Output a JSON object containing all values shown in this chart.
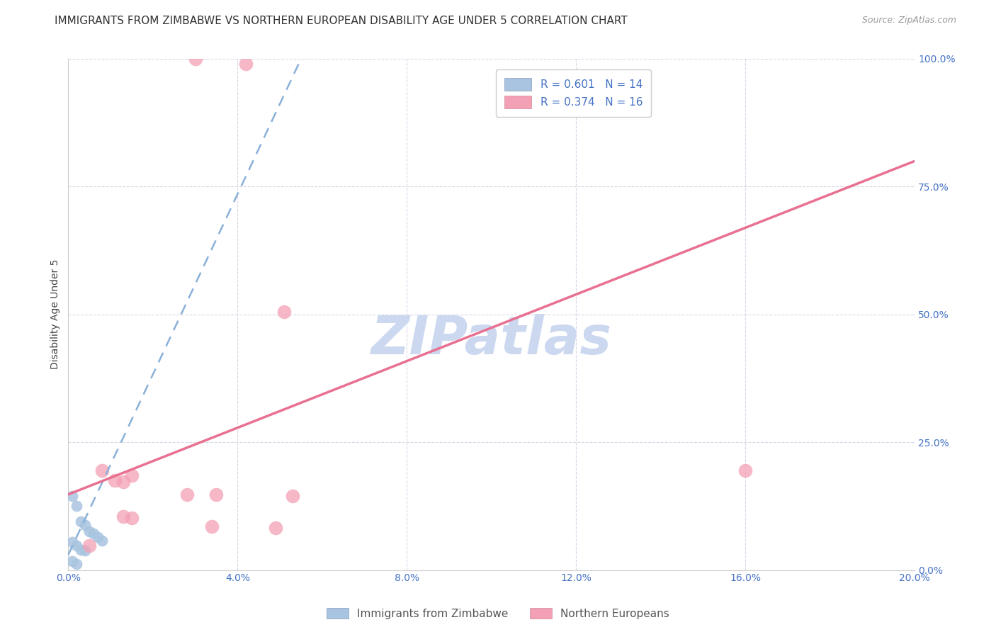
{
  "title": "IMMIGRANTS FROM ZIMBABWE VS NORTHERN EUROPEAN DISABILITY AGE UNDER 5 CORRELATION CHART",
  "source": "Source: ZipAtlas.com",
  "ylabel": "Disability Age Under 5",
  "xlim": [
    0.0,
    0.2
  ],
  "ylim": [
    0.0,
    1.0
  ],
  "xticks": [
    0.0,
    0.04,
    0.08,
    0.12,
    0.16,
    0.2
  ],
  "yticks": [
    0.0,
    0.25,
    0.5,
    0.75,
    1.0
  ],
  "xtick_labels": [
    "0.0%",
    "4.0%",
    "8.0%",
    "12.0%",
    "16.0%",
    "20.0%"
  ],
  "ytick_labels": [
    "0.0%",
    "25.0%",
    "50.0%",
    "75.0%",
    "100.0%"
  ],
  "zimbabwe_dots": [
    [
      0.001,
      0.145
    ],
    [
      0.002,
      0.125
    ],
    [
      0.003,
      0.095
    ],
    [
      0.004,
      0.088
    ],
    [
      0.005,
      0.075
    ],
    [
      0.006,
      0.072
    ],
    [
      0.007,
      0.065
    ],
    [
      0.008,
      0.058
    ],
    [
      0.001,
      0.055
    ],
    [
      0.002,
      0.048
    ],
    [
      0.003,
      0.04
    ],
    [
      0.004,
      0.038
    ],
    [
      0.001,
      0.018
    ],
    [
      0.002,
      0.012
    ]
  ],
  "northern_dots": [
    [
      0.03,
      1.0
    ],
    [
      0.042,
      0.99
    ],
    [
      0.008,
      0.195
    ],
    [
      0.011,
      0.175
    ],
    [
      0.013,
      0.172
    ],
    [
      0.015,
      0.185
    ],
    [
      0.028,
      0.148
    ],
    [
      0.035,
      0.148
    ],
    [
      0.053,
      0.145
    ],
    [
      0.013,
      0.105
    ],
    [
      0.015,
      0.102
    ],
    [
      0.034,
      0.085
    ],
    [
      0.049,
      0.082
    ],
    [
      0.005,
      0.048
    ],
    [
      0.16,
      0.195
    ],
    [
      0.051,
      0.505
    ]
  ],
  "zimbabwe_line": {
    "x0": 0.0,
    "y0": 0.03,
    "x1": 0.055,
    "y1": 1.0
  },
  "northern_line": {
    "x0": 0.0,
    "y0": 0.148,
    "x1": 0.2,
    "y1": 0.8
  },
  "zimbabwe_line_color": "#8ab0d8",
  "northern_line_color": "#e87090",
  "background_color": "#ffffff",
  "grid_color": "#d8d8e8",
  "watermark_text": "ZIPatlas",
  "watermark_color": "#ccd8f0",
  "title_fontsize": 11,
  "axis_label_fontsize": 10,
  "tick_fontsize": 10,
  "tick_color": "#4472c4",
  "source_fontsize": 9,
  "legend_fontsize": 11
}
